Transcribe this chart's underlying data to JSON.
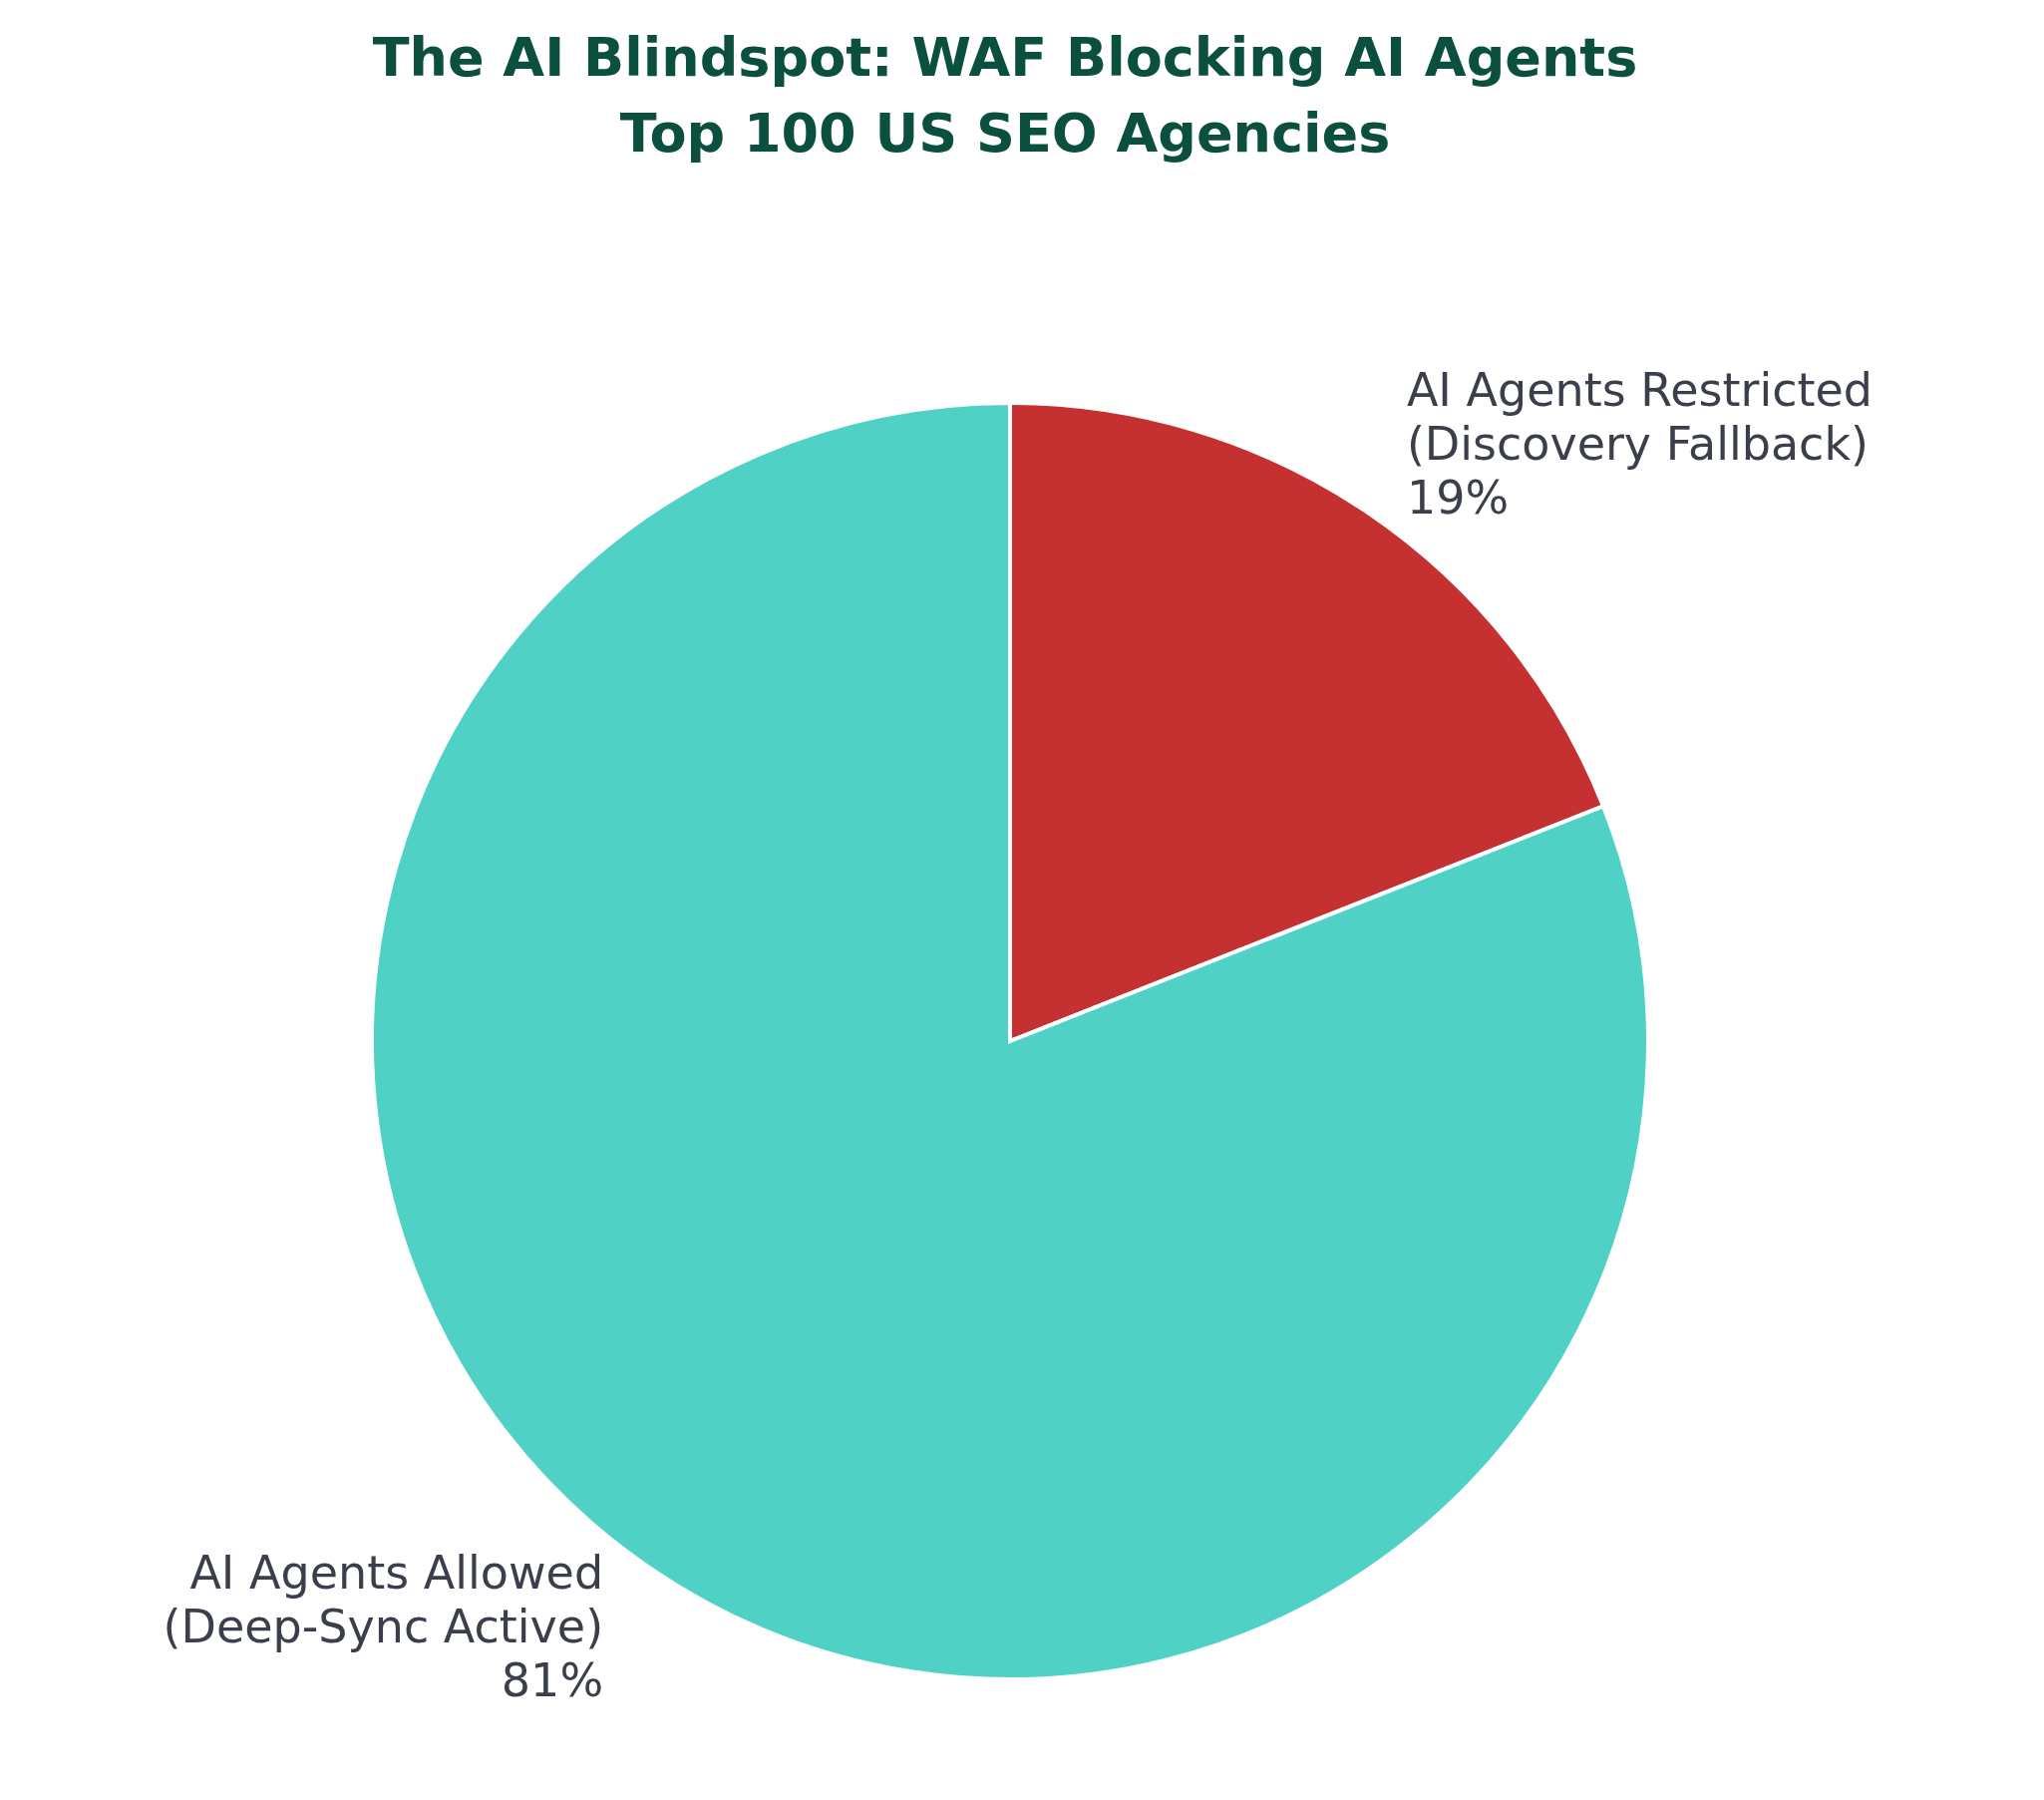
{
  "chart_data": {
    "type": "pie",
    "title": "The AI Blindspot: WAF Blocking AI Agents\nTop 100 US SEO Agencies",
    "categories": [
      "AI Agents Restricted\n(Discovery Fallback)",
      "AI Agents Allowed\n(Deep-Sync Active)"
    ],
    "values": [
      19,
      81
    ],
    "value_labels": [
      "19%",
      "81%"
    ],
    "colors": [
      "#c53030",
      "#4fd1c5"
    ]
  }
}
